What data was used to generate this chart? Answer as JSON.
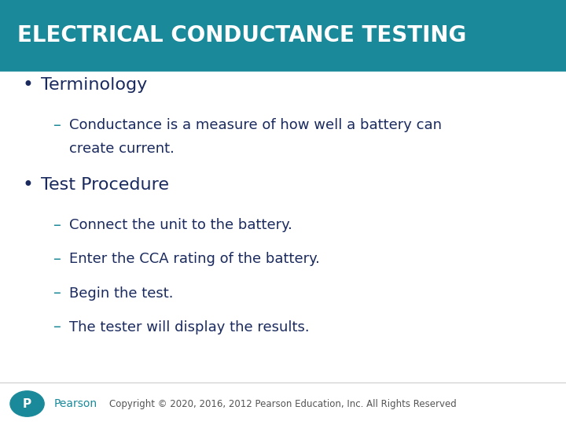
{
  "title": "ELECTRICAL CONDUCTANCE TESTING",
  "title_bg_color": "#1a8a9a",
  "title_text_color": "#ffffff",
  "slide_bg_color": "#ffffff",
  "title_bar_height": 0.165,
  "divider_color": "#1a8a9a",
  "text_color": "#1a2a5e",
  "bullet1_header": "Terminology",
  "bullet1_sub1": "Conductance is a measure of how well a battery can",
  "bullet1_sub2": "create current.",
  "bullet2_header": "Test Procedure",
  "bullet2_subs": [
    "Connect the unit to the battery.",
    "Enter the CCA rating of the battery.",
    "Begin the test.",
    "The tester will display the results."
  ],
  "footer_text": "Copyright © 2020, 2016, 2012 Pearson Education, Inc. All Rights Reserved",
  "footer_color": "#555555",
  "pearson_color": "#1a8a9a",
  "bullet_color": "#1a2a5e",
  "dash_color": "#1a8a9a"
}
